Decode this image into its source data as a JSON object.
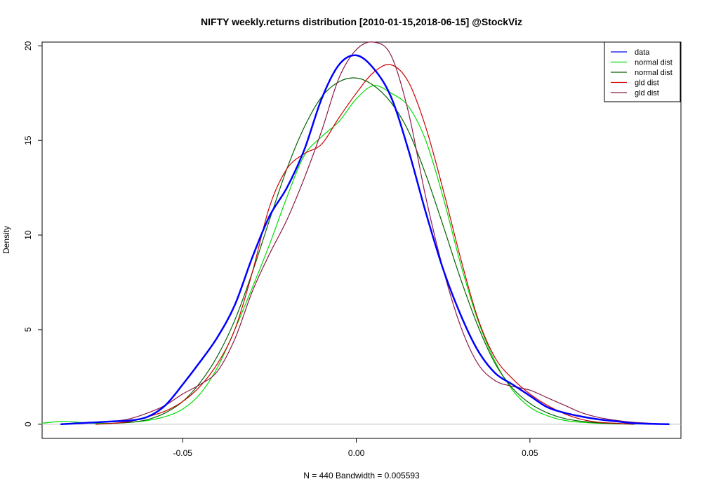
{
  "chart_data": {
    "type": "line",
    "title": "NIFTY weekly.returns distribution [2010-01-15,2018-06-15] @StockViz",
    "xlabel": "N = 440   Bandwidth = 0.005593",
    "ylabel": "Density",
    "xlim": [
      -0.0905,
      0.0935
    ],
    "ylim": [
      -0.75,
      20.2
    ],
    "x_ticks": [
      -0.05,
      0.0,
      0.05
    ],
    "x_tick_labels": [
      "-0.05",
      "0.00",
      "0.05"
    ],
    "y_ticks": [
      0,
      5,
      10,
      15,
      20
    ],
    "y_tick_labels": [
      "0",
      "5",
      "10",
      "15",
      "20"
    ],
    "grid": false,
    "legend_position": "top-right",
    "series": [
      {
        "name": "data",
        "color": "#0000ff",
        "width": 2.5,
        "x": [
          -0.085,
          -0.075,
          -0.07,
          -0.065,
          -0.06,
          -0.055,
          -0.05,
          -0.045,
          -0.04,
          -0.035,
          -0.03,
          -0.025,
          -0.02,
          -0.015,
          -0.01,
          -0.005,
          0.0,
          0.005,
          0.01,
          0.015,
          0.02,
          0.025,
          0.03,
          0.035,
          0.04,
          0.045,
          0.05,
          0.055,
          0.06,
          0.065,
          0.07,
          0.075,
          0.08,
          0.085,
          0.09
        ],
        "y": [
          0.0,
          0.1,
          0.15,
          0.2,
          0.4,
          1.0,
          2.1,
          3.3,
          4.6,
          6.3,
          8.8,
          11.0,
          12.5,
          14.5,
          17.2,
          19.0,
          19.5,
          18.8,
          17.3,
          14.5,
          11.2,
          8.2,
          5.8,
          3.9,
          2.7,
          2.1,
          1.5,
          0.9,
          0.6,
          0.4,
          0.25,
          0.15,
          0.05,
          0.02,
          0.0
        ]
      },
      {
        "name": "normal dist",
        "color": "#00dd00",
        "width": 1.2,
        "x": [
          -0.0905,
          -0.085,
          -0.08,
          -0.075,
          -0.07,
          -0.065,
          -0.06,
          -0.055,
          -0.05,
          -0.045,
          -0.04,
          -0.035,
          -0.03,
          -0.025,
          -0.02,
          -0.015,
          -0.01,
          -0.005,
          0.0,
          0.005,
          0.01,
          0.015,
          0.02,
          0.025,
          0.03,
          0.035,
          0.04,
          0.045,
          0.05,
          0.055,
          0.06,
          0.065,
          0.07,
          0.075,
          0.08
        ],
        "y": [
          0.05,
          0.15,
          0.1,
          0.05,
          0.05,
          0.1,
          0.2,
          0.4,
          0.8,
          1.6,
          3.0,
          5.0,
          7.2,
          9.5,
          12.0,
          14.2,
          15.2,
          16.0,
          17.2,
          17.9,
          17.5,
          16.8,
          15.0,
          12.0,
          8.5,
          5.5,
          3.3,
          1.8,
          0.9,
          0.45,
          0.2,
          0.1,
          0.05,
          0.02,
          0.0
        ]
      },
      {
        "name": "normal dist",
        "color": "#006400",
        "width": 1.2,
        "x": [
          -0.075,
          -0.07,
          -0.065,
          -0.06,
          -0.055,
          -0.05,
          -0.045,
          -0.04,
          -0.035,
          -0.03,
          -0.025,
          -0.02,
          -0.015,
          -0.01,
          -0.005,
          0.0,
          0.005,
          0.01,
          0.015,
          0.02,
          0.025,
          0.03,
          0.035,
          0.04,
          0.045,
          0.05,
          0.055,
          0.06,
          0.065,
          0.07,
          0.075,
          0.08
        ],
        "y": [
          0.0,
          0.05,
          0.1,
          0.25,
          0.6,
          1.2,
          2.2,
          3.6,
          5.5,
          8.0,
          10.8,
          13.5,
          15.7,
          17.3,
          18.1,
          18.3,
          17.9,
          17.0,
          15.5,
          13.2,
          10.5,
          7.7,
          5.2,
          3.2,
          1.9,
          1.1,
          0.6,
          0.3,
          0.15,
          0.07,
          0.03,
          0.0
        ]
      },
      {
        "name": "gld dist",
        "color": "#cc0000",
        "width": 1.2,
        "x": [
          -0.075,
          -0.07,
          -0.065,
          -0.06,
          -0.055,
          -0.05,
          -0.045,
          -0.04,
          -0.035,
          -0.03,
          -0.025,
          -0.02,
          -0.015,
          -0.01,
          -0.005,
          0.0,
          0.005,
          0.01,
          0.015,
          0.02,
          0.025,
          0.03,
          0.035,
          0.04,
          0.045,
          0.05,
          0.055,
          0.06,
          0.065,
          0.07,
          0.075,
          0.08
        ],
        "y": [
          0.0,
          0.05,
          0.15,
          0.4,
          0.7,
          1.2,
          2.0,
          3.2,
          5.0,
          8.0,
          11.5,
          13.5,
          14.3,
          14.8,
          16.2,
          17.5,
          18.6,
          19.0,
          18.1,
          15.7,
          12.4,
          8.8,
          5.6,
          3.5,
          2.4,
          1.6,
          1.0,
          0.55,
          0.25,
          0.1,
          0.05,
          0.0
        ]
      },
      {
        "name": "gld dist",
        "color": "#8b1a4a",
        "width": 1.2,
        "x": [
          -0.085,
          -0.08,
          -0.075,
          -0.07,
          -0.065,
          -0.06,
          -0.055,
          -0.05,
          -0.045,
          -0.04,
          -0.035,
          -0.03,
          -0.025,
          -0.02,
          -0.015,
          -0.01,
          -0.005,
          0.0,
          0.005,
          0.01,
          0.015,
          0.02,
          0.025,
          0.03,
          0.035,
          0.04,
          0.045,
          0.05,
          0.055,
          0.06,
          0.065,
          0.07,
          0.075,
          0.08,
          0.085,
          0.09
        ],
        "y": [
          0.0,
          0.05,
          0.1,
          0.15,
          0.3,
          0.6,
          1.0,
          1.6,
          2.1,
          2.8,
          4.5,
          7.0,
          9.0,
          10.8,
          13.0,
          15.5,
          18.3,
          19.8,
          20.2,
          19.5,
          16.5,
          12.0,
          8.2,
          5.2,
          3.2,
          2.3,
          2.0,
          1.8,
          1.4,
          1.0,
          0.6,
          0.35,
          0.2,
          0.1,
          0.05,
          0.0
        ]
      }
    ]
  }
}
